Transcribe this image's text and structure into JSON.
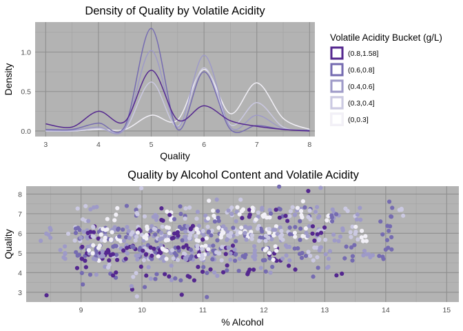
{
  "chart_data": [
    {
      "type": "line",
      "title": "Density of Quality by Volatile Acidity",
      "xlabel": "Quality",
      "ylabel": "Density",
      "xlim": [
        2.8,
        8.1
      ],
      "ylim": [
        -0.07,
        1.38
      ],
      "x_ticks": [
        3,
        4,
        5,
        6,
        7,
        8
      ],
      "y_ticks": [
        0.0,
        0.5,
        1.0
      ],
      "y_tick_labels": [
        "0.0",
        "0.5",
        "1.0"
      ],
      "grid": true,
      "background": "#b3b3b3",
      "legend": {
        "title": "Volatile Acidity Bucket (g/L)",
        "position": "right",
        "entries": [
          "(0.8,1.58]",
          "(0.6,0.8]",
          "(0.4,0.6]",
          "(0.3,0.4]",
          "(0,0.3]"
        ]
      },
      "series": [
        {
          "name": "(0.8,1.58]",
          "color": "#54278f",
          "x": [
            3,
            3.5,
            4,
            4.5,
            5,
            5.5,
            6,
            6.5,
            7,
            7.5,
            8
          ],
          "y": [
            0.09,
            0.05,
            0.25,
            0.12,
            0.77,
            0.14,
            0.32,
            0.13,
            0.06,
            0.02,
            0.0
          ]
        },
        {
          "name": "(0.6,0.8]",
          "color": "#756bb1",
          "x": [
            3,
            3.5,
            4,
            4.5,
            5,
            5.5,
            6,
            6.5,
            7,
            7.5,
            8
          ],
          "y": [
            0.02,
            0.02,
            0.1,
            0.06,
            1.3,
            0.02,
            0.75,
            0.02,
            0.07,
            0.02,
            0.01
          ]
        },
        {
          "name": "(0.4,0.6]",
          "color": "#9e9ac8",
          "x": [
            3,
            3.5,
            4,
            4.5,
            5,
            5.5,
            6,
            6.5,
            7,
            7.5,
            8
          ],
          "y": [
            0.01,
            0.01,
            0.05,
            0.03,
            1.02,
            0.05,
            0.96,
            0.05,
            0.2,
            0.03,
            0.01
          ]
        },
        {
          "name": "(0.3,0.4]",
          "color": "#cbc9e2",
          "x": [
            3,
            3.5,
            4,
            4.5,
            5,
            5.5,
            6,
            6.5,
            7,
            7.5,
            8
          ],
          "y": [
            0.0,
            0.0,
            0.03,
            0.02,
            0.62,
            0.06,
            0.8,
            0.08,
            0.36,
            0.05,
            0.01
          ]
        },
        {
          "name": "(0,0.3]",
          "color": "#f2f0f7",
          "x": [
            3,
            3.5,
            4,
            4.5,
            5,
            5.5,
            6,
            6.5,
            7,
            7.5,
            8
          ],
          "y": [
            0.0,
            0.0,
            0.02,
            0.02,
            0.2,
            0.14,
            0.78,
            0.22,
            0.61,
            0.16,
            0.02
          ]
        }
      ]
    },
    {
      "type": "scatter",
      "title": "Quality by Alcohol Content and Volatile Acidity",
      "xlabel": "% Alcohol",
      "ylabel": "Quality",
      "xlim": [
        8.1,
        15.2
      ],
      "ylim": [
        2.5,
        8.4
      ],
      "x_ticks": [
        9,
        10,
        11,
        12,
        13,
        14,
        15
      ],
      "y_ticks": [
        3,
        4,
        5,
        6,
        7,
        8
      ],
      "grid": true,
      "background": "#b3b3b3",
      "jitter": true,
      "colors": [
        "#54278f",
        "#756bb1",
        "#9e9ac8",
        "#cbc9e2",
        "#f2f0f7"
      ],
      "clusters": [
        {
          "quality": 3,
          "points": [
            [
              8.4,
              0
            ],
            [
              9.0,
              1
            ],
            [
              9.8,
              0
            ],
            [
              9.9,
              2
            ],
            [
              10.0,
              1
            ],
            [
              10.6,
              0
            ],
            [
              11.0,
              1
            ],
            [
              9.9,
              3
            ]
          ]
        },
        {
          "quality": 4,
          "points": [
            [
              9.0,
              0
            ],
            [
              9.1,
              1
            ],
            [
              9.3,
              2
            ],
            [
              9.5,
              1
            ],
            [
              9.6,
              0
            ],
            [
              9.8,
              3
            ],
            [
              10.0,
              0
            ],
            [
              10.1,
              2
            ],
            [
              10.2,
              1
            ],
            [
              10.4,
              0
            ],
            [
              10.5,
              2
            ],
            [
              10.6,
              1
            ],
            [
              10.8,
              0
            ],
            [
              11.0,
              1
            ],
            [
              11.1,
              0
            ],
            [
              11.2,
              2
            ],
            [
              11.4,
              0
            ],
            [
              11.5,
              1
            ],
            [
              11.7,
              0
            ],
            [
              12.0,
              2
            ],
            [
              12.1,
              1
            ],
            [
              12.5,
              0
            ],
            [
              12.9,
              1
            ],
            [
              13.1,
              2
            ],
            [
              13.3,
              0
            ],
            [
              9.4,
              3
            ],
            [
              10.9,
              0
            ],
            [
              11.8,
              0
            ]
          ]
        },
        {
          "quality": 5,
          "points": [
            [
              8.7,
              2
            ],
            [
              9.0,
              1
            ],
            [
              9.1,
              0
            ],
            [
              9.2,
              2
            ],
            [
              9.3,
              1
            ],
            [
              9.4,
              0
            ],
            [
              9.5,
              3
            ],
            [
              9.6,
              1
            ],
            [
              9.7,
              2
            ],
            [
              9.8,
              0
            ],
            [
              9.9,
              1
            ],
            [
              10.0,
              2
            ],
            [
              10.1,
              3
            ],
            [
              10.2,
              1
            ],
            [
              10.3,
              0
            ],
            [
              10.4,
              2
            ],
            [
              10.5,
              1
            ],
            [
              10.6,
              3
            ],
            [
              10.7,
              0
            ],
            [
              10.8,
              2
            ],
            [
              10.9,
              1
            ],
            [
              11.0,
              0
            ],
            [
              11.1,
              2
            ],
            [
              11.2,
              1
            ],
            [
              11.3,
              3
            ],
            [
              11.4,
              0
            ],
            [
              11.5,
              2
            ],
            [
              11.6,
              1
            ],
            [
              11.8,
              2
            ],
            [
              12.0,
              1
            ],
            [
              12.2,
              0
            ],
            [
              12.4,
              2
            ],
            [
              12.6,
              1
            ],
            [
              12.8,
              3
            ],
            [
              13.0,
              2
            ],
            [
              13.4,
              1
            ],
            [
              13.7,
              2
            ],
            [
              14.0,
              1
            ],
            [
              9.2,
              4
            ],
            [
              10.3,
              4
            ],
            [
              11.0,
              4
            ],
            [
              12.1,
              4
            ],
            [
              9.5,
              0
            ],
            [
              10.1,
              0
            ],
            [
              10.9,
              3
            ],
            [
              9.3,
              2
            ]
          ]
        },
        {
          "quality": 6,
          "points": [
            [
              8.4,
              2
            ],
            [
              8.9,
              3
            ],
            [
              9.0,
              1
            ],
            [
              9.1,
              2
            ],
            [
              9.2,
              0
            ],
            [
              9.3,
              3
            ],
            [
              9.4,
              1
            ],
            [
              9.5,
              2
            ],
            [
              9.6,
              4
            ],
            [
              9.7,
              1
            ],
            [
              9.8,
              2
            ],
            [
              9.9,
              3
            ],
            [
              10.0,
              0
            ],
            [
              10.1,
              2
            ],
            [
              10.2,
              1
            ],
            [
              10.3,
              3
            ],
            [
              10.4,
              2
            ],
            [
              10.5,
              4
            ],
            [
              10.6,
              1
            ],
            [
              10.7,
              2
            ],
            [
              10.8,
              3
            ],
            [
              10.9,
              0
            ],
            [
              11.0,
              2
            ],
            [
              11.1,
              3
            ],
            [
              11.2,
              1
            ],
            [
              11.3,
              4
            ],
            [
              11.4,
              2
            ],
            [
              11.5,
              3
            ],
            [
              11.6,
              1
            ],
            [
              11.7,
              4
            ],
            [
              11.8,
              2
            ],
            [
              11.9,
              3
            ],
            [
              12.0,
              1
            ],
            [
              12.1,
              4
            ],
            [
              12.2,
              2
            ],
            [
              12.3,
              3
            ],
            [
              12.5,
              1
            ],
            [
              12.6,
              4
            ],
            [
              12.8,
              2
            ],
            [
              13.0,
              3
            ],
            [
              13.2,
              2
            ],
            [
              13.5,
              3
            ],
            [
              13.6,
              4
            ],
            [
              14.0,
              1
            ],
            [
              9.4,
              4
            ],
            [
              10.0,
              4
            ],
            [
              11.0,
              4
            ],
            [
              12.0,
              3
            ],
            [
              12.9,
              0
            ],
            [
              10.6,
              0
            ]
          ]
        },
        {
          "quality": 7,
          "points": [
            [
              9.0,
              3
            ],
            [
              9.2,
              2
            ],
            [
              9.5,
              4
            ],
            [
              9.8,
              1
            ],
            [
              10.0,
              3
            ],
            [
              10.2,
              2
            ],
            [
              10.5,
              4
            ],
            [
              10.6,
              1
            ],
            [
              10.8,
              3
            ],
            [
              11.0,
              2
            ],
            [
              11.1,
              4
            ],
            [
              11.2,
              1
            ],
            [
              11.4,
              3
            ],
            [
              11.5,
              2
            ],
            [
              11.6,
              4
            ],
            [
              11.7,
              0
            ],
            [
              11.8,
              3
            ],
            [
              12.0,
              2
            ],
            [
              12.1,
              4
            ],
            [
              12.2,
              1
            ],
            [
              12.4,
              3
            ],
            [
              12.5,
              2
            ],
            [
              12.6,
              4
            ],
            [
              12.7,
              1
            ],
            [
              12.8,
              3
            ],
            [
              12.9,
              2
            ],
            [
              13.0,
              4
            ],
            [
              13.2,
              2
            ],
            [
              13.4,
              3
            ],
            [
              13.6,
              2
            ],
            [
              14.0,
              1
            ],
            [
              14.3,
              3
            ],
            [
              10.4,
              0
            ],
            [
              11.9,
              4
            ],
            [
              12.3,
              0
            ],
            [
              13.1,
              1
            ]
          ]
        },
        {
          "quality": 8,
          "points": [
            [
              10.0,
              3
            ],
            [
              11.0,
              4
            ],
            [
              11.3,
              2
            ],
            [
              11.7,
              3
            ],
            [
              12.3,
              1
            ],
            [
              12.6,
              4
            ],
            [
              12.8,
              0
            ],
            [
              12.9,
              2
            ],
            [
              14.0,
              1
            ]
          ]
        }
      ]
    }
  ]
}
